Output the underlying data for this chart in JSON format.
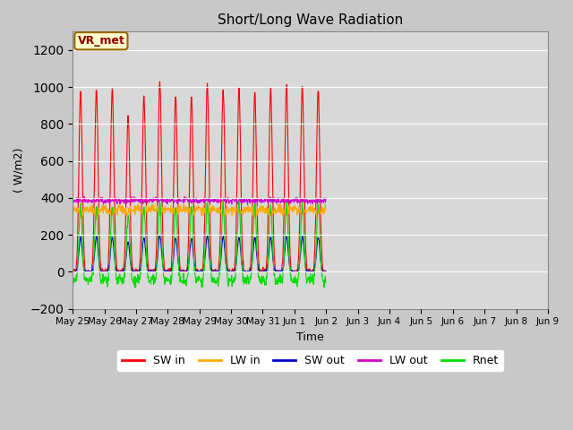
{
  "title": "Short/Long Wave Radiation",
  "xlabel": "Time",
  "ylabel": "( W/m2)",
  "ylim": [
    -200,
    1300
  ],
  "yticks": [
    -200,
    0,
    200,
    400,
    600,
    800,
    1000,
    1200
  ],
  "annotation": "VR_met",
  "fig_bg_color": "#c8c8c8",
  "plot_bg_color": "#d8d8d8",
  "legend_bg_color": "#ffffff",
  "colors": {
    "SW in": "#ff0000",
    "LW in": "#ffaa00",
    "SW out": "#0000cc",
    "LW out": "#cc00cc",
    "Rnet": "#00dd00"
  },
  "xtick_labels": [
    "May 25",
    "May 26",
    "May 27",
    "May 28",
    "May 29",
    "May 30",
    "May 31",
    "Jun 1",
    "Jun 2",
    "Jun 3",
    "Jun 4",
    "Jun 5",
    "Jun 6",
    "Jun 7",
    "Jun 8",
    "Jun 9"
  ],
  "num_days": 16,
  "sw_peaks": [
    980,
    990,
    990,
    840,
    950,
    1030,
    960,
    950,
    1020,
    990,
    990,
    970,
    990,
    1010,
    1000,
    990
  ]
}
